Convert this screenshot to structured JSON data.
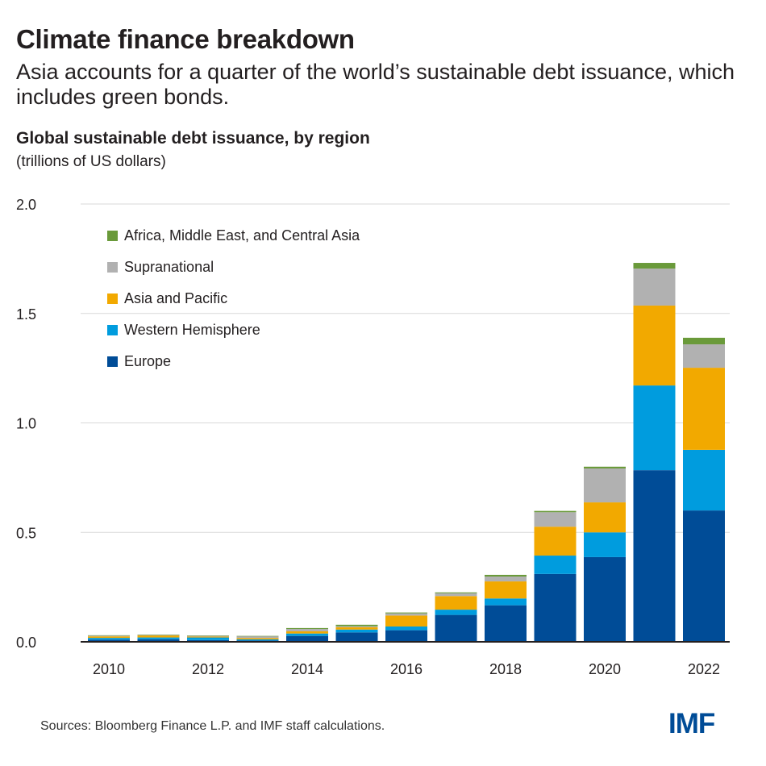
{
  "title": "Climate finance breakdown",
  "subtitle": "Asia accounts for a quarter of the world’s sustainable debt issuance, which includes green bonds.",
  "source": "Sources: Bloomberg Finance L.P. and IMF staff calculations.",
  "logo": "IMF",
  "chart_data": {
    "type": "bar",
    "stacked": true,
    "title": "Global sustainable debt issuance, by region",
    "ylabel": "(trillions of US dollars)",
    "xlabel": "",
    "ylim": [
      0,
      2.0
    ],
    "yticks": [
      "0.0",
      "0.5",
      "1.0",
      "1.5",
      "2.0"
    ],
    "grid": true,
    "legend_position": "top-left",
    "categories": [
      "2010",
      "2011",
      "2012",
      "2013",
      "2014",
      "2015",
      "2016",
      "2017",
      "2018",
      "2019",
      "2020",
      "2021",
      "2022"
    ],
    "xtick_labels": [
      "2010",
      "",
      "2012",
      "",
      "2014",
      "",
      "2016",
      "",
      "2018",
      "",
      "2020",
      "",
      "2022"
    ],
    "series": [
      {
        "name": "Europe",
        "color": "#004c97",
        "values": [
          0.01,
          0.012,
          0.008,
          0.006,
          0.027,
          0.043,
          0.053,
          0.123,
          0.167,
          0.31,
          0.387,
          0.784,
          0.6
        ]
      },
      {
        "name": "Western Hemisphere",
        "color": "#009cde",
        "values": [
          0.008,
          0.008,
          0.012,
          0.005,
          0.011,
          0.013,
          0.017,
          0.024,
          0.031,
          0.084,
          0.113,
          0.387,
          0.277
        ]
      },
      {
        "name": "Asia and Pacific",
        "color": "#f2a900",
        "values": [
          0.007,
          0.009,
          0.004,
          0.006,
          0.01,
          0.011,
          0.05,
          0.062,
          0.078,
          0.132,
          0.137,
          0.365,
          0.375
        ]
      },
      {
        "name": "Supranational",
        "color": "#b1b1b1",
        "values": [
          0.004,
          0.003,
          0.004,
          0.009,
          0.011,
          0.004,
          0.01,
          0.013,
          0.022,
          0.066,
          0.155,
          0.169,
          0.107
        ]
      },
      {
        "name": "Africa, Middle East, and Central Asia",
        "color": "#6a9a3a",
        "values": [
          0.001,
          0.001,
          0.001,
          0.001,
          0.004,
          0.007,
          0.004,
          0.004,
          0.008,
          0.006,
          0.008,
          0.026,
          0.03
        ]
      }
    ],
    "legend_order": [
      "Africa, Middle East, and Central Asia",
      "Supranational",
      "Asia and Pacific",
      "Western Hemisphere",
      "Europe"
    ]
  }
}
